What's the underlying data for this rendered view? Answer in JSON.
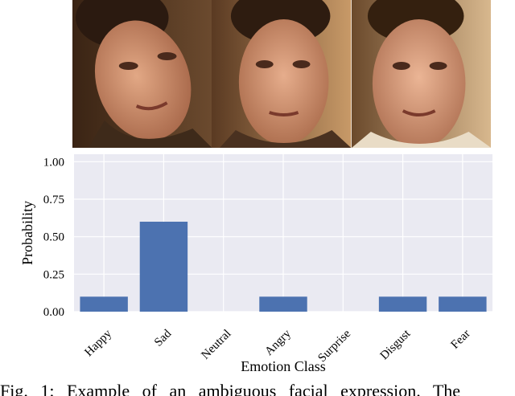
{
  "faces": [
    {
      "name": "face-photo-1"
    },
    {
      "name": "face-photo-2"
    },
    {
      "name": "face-photo-3"
    }
  ],
  "chart_data": {
    "type": "bar",
    "categories": [
      "Happy",
      "Sad",
      "Neutral",
      "Angry",
      "Surprise",
      "Disgust",
      "Fear"
    ],
    "values": [
      0.1,
      0.6,
      0.0,
      0.1,
      0.0,
      0.1,
      0.1
    ],
    "xlabel": "Emotion Class",
    "ylabel": "Probability",
    "ylim": [
      0,
      1.05
    ],
    "yticks": [
      0.0,
      0.25,
      0.5,
      0.75,
      1.0
    ],
    "ytick_labels": [
      "0.00",
      "0.25",
      "0.50",
      "0.75",
      "1.00"
    ],
    "grid": true,
    "bar_color": "#4c72b0",
    "plot_background": "#eaeaf2"
  },
  "caption": "Fig. 1: Example of an ambiguous facial expression. The"
}
